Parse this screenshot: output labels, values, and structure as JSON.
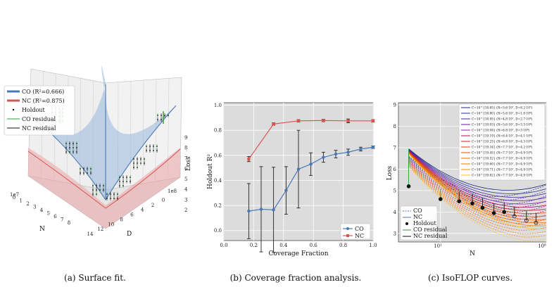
{
  "captions": [
    "(a) Surface fit.",
    "(b) Coverage fraction analysis.",
    "(c) IsoFLOP curves."
  ],
  "colors": {
    "co": "#4a78b5",
    "nc": "#d9534f",
    "holdout": "#000000",
    "co_residual": "#2ca02c",
    "nc_residual": "#111111",
    "panel_bg": "#dcdcdc"
  },
  "chart_data": [
    {
      "type": "surface3d",
      "legend": {
        "position": "top-left",
        "entries": [
          "CO (R²=0.666)",
          "NC (R²=0.875)",
          "Holdout",
          "CO residual",
          "NC residual"
        ]
      },
      "axes": {
        "n": {
          "label": "N",
          "ticks": [
            "0",
            "1",
            "2",
            "3",
            "4",
            "5",
            "6",
            "7",
            "8"
          ],
          "offset_label": "1e7"
        },
        "d": {
          "label": "D",
          "ticks": [
            "14",
            "12",
            "10",
            "8",
            "6",
            "4",
            "2",
            "0"
          ],
          "offset_label": "1e8"
        },
        "loss": {
          "label": "Loss",
          "ticks": [
            "2",
            "3",
            "4",
            "5",
            "6",
            "7",
            "8",
            "9"
          ]
        }
      },
      "grid": true
    },
    {
      "type": "line",
      "xlabel": "Coverage Fraction",
      "ylabel": "Holdout R²",
      "xlim": [
        0,
        1.0
      ],
      "ylim": [
        -0.08,
        1.02
      ],
      "xticks": [
        "0.0",
        "0.2",
        "0.4",
        "0.6",
        "0.8",
        "1.0"
      ],
      "yticks": [
        "0.0",
        "0.2",
        "0.4",
        "0.6",
        "0.8",
        "1.0"
      ],
      "grid": true,
      "legend": {
        "position": "bottom-right"
      },
      "series": [
        {
          "name": "CO",
          "x": [
            0.167,
            0.25,
            0.333,
            0.417,
            0.5,
            0.583,
            0.667,
            0.75,
            0.833,
            0.917,
            1.0
          ],
          "y": [
            0.155,
            0.17,
            0.165,
            0.32,
            0.49,
            0.53,
            0.585,
            0.61,
            0.625,
            0.65,
            0.665
          ],
          "err": [
            0.22,
            0.34,
            0.34,
            0.19,
            0.31,
            0.09,
            0.04,
            0.03,
            0.025,
            0.015,
            0.01
          ]
        },
        {
          "name": "NC",
          "x": [
            0.167,
            0.333,
            0.5,
            0.667,
            0.833,
            1.0
          ],
          "y": [
            0.57,
            0.85,
            0.875,
            0.878,
            0.875,
            0.875
          ],
          "err": [
            0.02,
            0.01,
            0.01,
            0.01,
            0.015,
            0.01
          ]
        }
      ]
    },
    {
      "type": "line",
      "xlabel": "N",
      "ylabel": "Loss",
      "xscale": "log",
      "xlim": [
        4,
        100
      ],
      "ylim": [
        2.6,
        9.1
      ],
      "xticks": [
        "10¹",
        "10⁸"
      ],
      "yticks": [
        "3",
        "4",
        "5",
        "6",
        "7",
        "8",
        "9"
      ],
      "grid": true,
      "legend_top": [
        {
          "text": "C=10^{18.65} (N=5.6·10⁷, D=8.2·10⁷)",
          "color": "#1a237e"
        },
        {
          "text": "C=10^{18.80} (N=5.6·10⁷, D=1.0·10⁸)",
          "color": "#283593"
        },
        {
          "text": "C=10^{18.95} (N=4.8·10⁷, D=2.7·10⁸)",
          "color": "#4527a0"
        },
        {
          "text": "C=10^{19.03} (N=5.6·10⁷, D=3.3·10⁸)",
          "color": "#6a1b9a"
        },
        {
          "text": "C=10^{19.08} (N=6.8·10⁷, D=3·10⁸)",
          "color": "#8e24aa"
        },
        {
          "text": "C=10^{19.19} (N=6.4·10⁷, D=4.1·10⁸)",
          "color": "#ad1457"
        },
        {
          "text": "C=10^{19.25} (N=6.8·10⁷, D=4.3·10⁸)",
          "color": "#c62828"
        },
        {
          "text": "C=10^{19.34} (N=7.7·10⁷, D=4.2·10⁸)",
          "color": "#d84315"
        },
        {
          "text": "C=10^{19.45} (N=7.7·10⁷, D=4.9·10⁸)",
          "color": "#e65100"
        },
        {
          "text": "C=10^{19.52} (N=7.7·10⁷, D=4.9·10⁸)",
          "color": "#ef6c00"
        },
        {
          "text": "C=10^{19.60} (N=7.7·10⁷, D=4.9·10⁸)",
          "color": "#f57c00"
        },
        {
          "text": "C=10^{19.71} (N=7.7·10⁷, D=4.9·10⁸)",
          "color": "#fb8c00"
        },
        {
          "text": "C=10^{19.82} (N=7.7·10⁷, D=4.9·10⁸)",
          "color": "#fbc02d"
        }
      ],
      "legend_bottom": [
        "CO",
        "NC",
        "Holdout",
        "CO residual",
        "NC residual"
      ],
      "holdout_points": [
        {
          "x": 5.0,
          "y": 5.2
        },
        {
          "x": 10.0,
          "y": 4.6
        },
        {
          "x": 15.0,
          "y": 4.5
        },
        {
          "x": 20.0,
          "y": 4.4
        },
        {
          "x": 25.0,
          "y": 4.2
        },
        {
          "x": 32.0,
          "y": 3.95
        },
        {
          "x": 40.0,
          "y": 4.0
        },
        {
          "x": 50.0,
          "y": 3.8
        },
        {
          "x": 65.0,
          "y": 3.6
        },
        {
          "x": 80.0,
          "y": 3.5
        }
      ]
    }
  ]
}
